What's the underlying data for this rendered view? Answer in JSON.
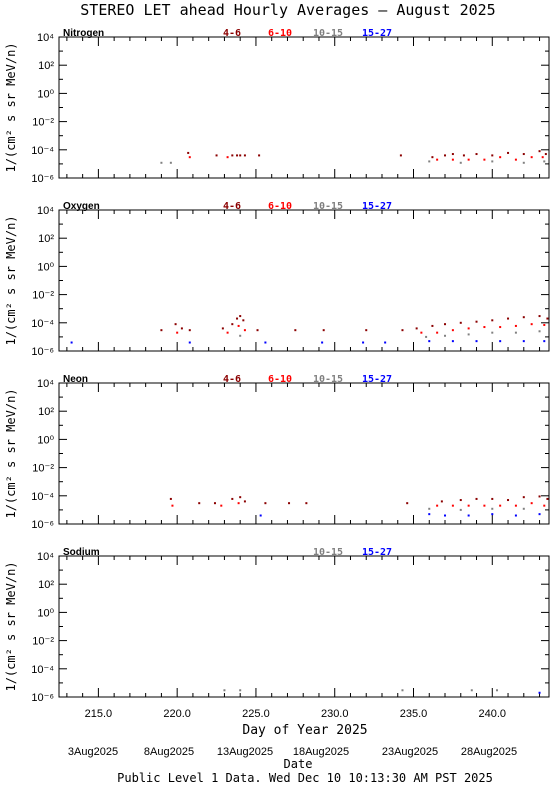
{
  "chart_data": {
    "type": "scatter",
    "title": "STEREO LET ahead Hourly Averages – August 2025",
    "xlabel": "Day of Year 2025",
    "ylabel": "1/(cm² s sr MeV/n)",
    "y_scale": "log",
    "ylim": [
      1e-06,
      10000.0
    ],
    "xlim": [
      212.5,
      243.6
    ],
    "x_ticks": [
      215.0,
      220.0,
      225.0,
      230.0,
      235.0,
      240.0
    ],
    "x_tick_labels": [
      "215.0",
      "220.0",
      "225.0",
      "230.0",
      "235.0",
      "240.0"
    ],
    "y_tick_labels": [
      "10⁴",
      "10²",
      "10⁰",
      "10⁻²",
      "10⁻⁴",
      "10⁻⁶"
    ],
    "date_labels": [
      "3Aug2025",
      "8Aug2025",
      "13Aug2025",
      "18Aug2025",
      "23Aug2025",
      "28Aug2025"
    ],
    "date_axis_label": "Date",
    "footer": "Public Level 1 Data. Wed Dec 10 10:13:30 AM PST 2025",
    "energy_legend": [
      {
        "name": "4-6",
        "color": "#8b0000"
      },
      {
        "name": "6-10",
        "color": "#ff0000"
      },
      {
        "name": "10-15",
        "color": "#808080"
      },
      {
        "name": "15-27",
        "color": "#0000ff"
      }
    ],
    "panels": [
      {
        "name": "Nitrogen",
        "legend": [
          "4-6",
          "6-10",
          "10-15",
          "15-27"
        ],
        "series": [
          {
            "name": "4-6",
            "color": "#8b0000",
            "points": [
              [
                220.7,
                6e-05
              ],
              [
                222.5,
                4e-05
              ],
              [
                223.5,
                4e-05
              ],
              [
                223.8,
                4e-05
              ],
              [
                224.0,
                4e-05
              ],
              [
                224.3,
                4e-05
              ],
              [
                225.2,
                4e-05
              ],
              [
                234.2,
                4e-05
              ],
              [
                236.2,
                3e-05
              ],
              [
                237.0,
                4e-05
              ],
              [
                237.5,
                5e-05
              ],
              [
                238.2,
                4e-05
              ],
              [
                239.0,
                5e-05
              ],
              [
                240.0,
                4e-05
              ],
              [
                241.0,
                6e-05
              ],
              [
                242.0,
                5e-05
              ],
              [
                243.0,
                8e-05
              ],
              [
                243.4,
                5e-05
              ]
            ]
          },
          {
            "name": "6-10",
            "color": "#ff0000",
            "points": [
              [
                220.8,
                3e-05
              ],
              [
                223.2,
                3e-05
              ],
              [
                236.5,
                2e-05
              ],
              [
                237.5,
                2e-05
              ],
              [
                238.5,
                2e-05
              ],
              [
                239.5,
                2e-05
              ],
              [
                240.5,
                3e-05
              ],
              [
                241.5,
                2e-05
              ],
              [
                242.5,
                3e-05
              ],
              [
                243.2,
                3e-05
              ]
            ]
          },
          {
            "name": "10-15",
            "color": "#808080",
            "points": [
              [
                219.0,
                1.2e-05
              ],
              [
                219.6,
                1.2e-05
              ],
              [
                236.0,
                1.5e-05
              ],
              [
                238.0,
                1.2e-05
              ],
              [
                240.0,
                1.5e-05
              ],
              [
                242.0,
                1.2e-05
              ],
              [
                243.3,
                1.5e-05
              ]
            ]
          },
          {
            "name": "15-27",
            "color": "#0000ff",
            "points": []
          }
        ]
      },
      {
        "name": "Oxygen",
        "legend": [
          "4-6",
          "6-10",
          "10-15",
          "15-27"
        ],
        "series": [
          {
            "name": "4-6",
            "color": "#8b0000",
            "points": [
              [
                219.0,
                3e-05
              ],
              [
                219.9,
                8e-05
              ],
              [
                220.3,
                4e-05
              ],
              [
                220.8,
                3e-05
              ],
              [
                222.9,
                4e-05
              ],
              [
                223.5,
                8e-05
              ],
              [
                223.8,
                0.0002
              ],
              [
                224.0,
                0.0003
              ],
              [
                224.2,
                0.00015
              ],
              [
                225.1,
                3e-05
              ],
              [
                227.5,
                3e-05
              ],
              [
                229.3,
                3e-05
              ],
              [
                232.0,
                3e-05
              ],
              [
                234.3,
                3e-05
              ],
              [
                235.2,
                4e-05
              ],
              [
                236.2,
                6e-05
              ],
              [
                237.0,
                8e-05
              ],
              [
                238.0,
                0.0001
              ],
              [
                239.0,
                0.00012
              ],
              [
                240.0,
                0.00015
              ],
              [
                241.0,
                0.0002
              ],
              [
                242.0,
                0.00025
              ],
              [
                243.0,
                0.0003
              ],
              [
                243.5,
                0.0002
              ]
            ]
          },
          {
            "name": "6-10",
            "color": "#ff0000",
            "points": [
              [
                220.0,
                2e-05
              ],
              [
                223.2,
                2e-05
              ],
              [
                223.9,
                6e-05
              ],
              [
                224.3,
                3e-05
              ],
              [
                235.5,
                2e-05
              ],
              [
                236.5,
                2e-05
              ],
              [
                237.5,
                3e-05
              ],
              [
                238.5,
                4e-05
              ],
              [
                239.5,
                5e-05
              ],
              [
                240.5,
                5e-05
              ],
              [
                241.5,
                6e-05
              ],
              [
                242.5,
                8e-05
              ],
              [
                243.3,
                7e-05
              ]
            ]
          },
          {
            "name": "10-15",
            "color": "#808080",
            "points": [
              [
                224.0,
                1.2e-05
              ],
              [
                235.8,
                1e-05
              ],
              [
                237.0,
                1.2e-05
              ],
              [
                238.5,
                1.5e-05
              ],
              [
                240.0,
                2e-05
              ],
              [
                241.5,
                2e-05
              ],
              [
                243.0,
                2.5e-05
              ]
            ]
          },
          {
            "name": "15-27",
            "color": "#0000ff",
            "points": [
              [
                213.3,
                4e-06
              ],
              [
                220.8,
                4e-06
              ],
              [
                225.6,
                4e-06
              ],
              [
                229.2,
                4e-06
              ],
              [
                231.8,
                4e-06
              ],
              [
                233.2,
                4e-06
              ],
              [
                236.0,
                5e-06
              ],
              [
                237.5,
                5e-06
              ],
              [
                239.0,
                5e-06
              ],
              [
                240.5,
                5e-06
              ],
              [
                242.0,
                5e-06
              ],
              [
                243.3,
                5e-06
              ]
            ]
          }
        ]
      },
      {
        "name": "Neon",
        "legend": [
          "4-6",
          "6-10",
          "10-15",
          "15-27"
        ],
        "series": [
          {
            "name": "4-6",
            "color": "#8b0000",
            "points": [
              [
                219.6,
                6e-05
              ],
              [
                221.4,
                3e-05
              ],
              [
                222.4,
                3e-05
              ],
              [
                223.5,
                6e-05
              ],
              [
                224.0,
                8e-05
              ],
              [
                224.3,
                4e-05
              ],
              [
                225.6,
                3e-05
              ],
              [
                227.1,
                3e-05
              ],
              [
                228.2,
                3e-05
              ],
              [
                234.6,
                3e-05
              ],
              [
                236.8,
                4e-05
              ],
              [
                238.0,
                5e-05
              ],
              [
                239.0,
                6e-05
              ],
              [
                240.0,
                6e-05
              ],
              [
                241.0,
                5e-05
              ],
              [
                242.0,
                8e-05
              ],
              [
                243.0,
                9e-05
              ],
              [
                243.5,
                6e-05
              ]
            ]
          },
          {
            "name": "6-10",
            "color": "#ff0000",
            "points": [
              [
                219.7,
                2e-05
              ],
              [
                222.8,
                2e-05
              ],
              [
                223.9,
                3e-05
              ],
              [
                236.5,
                2e-05
              ],
              [
                237.5,
                2e-05
              ],
              [
                238.5,
                2e-05
              ],
              [
                239.5,
                2e-05
              ],
              [
                240.5,
                2e-05
              ],
              [
                241.5,
                2e-05
              ],
              [
                242.5,
                3e-05
              ],
              [
                243.3,
                2e-05
              ]
            ]
          },
          {
            "name": "10-15",
            "color": "#808080",
            "points": [
              [
                236.0,
                1.2e-05
              ],
              [
                238.0,
                1e-05
              ],
              [
                240.0,
                1.2e-05
              ],
              [
                242.0,
                1.2e-05
              ]
            ]
          },
          {
            "name": "15-27",
            "color": "#0000ff",
            "points": [
              [
                225.3,
                4e-06
              ],
              [
                236.0,
                5e-06
              ],
              [
                237.0,
                4e-06
              ],
              [
                238.5,
                4e-06
              ],
              [
                240.0,
                5e-06
              ],
              [
                241.5,
                4e-06
              ],
              [
                243.0,
                5e-06
              ]
            ]
          }
        ]
      },
      {
        "name": "Sodium",
        "legend": [
          "10-15",
          "15-27"
        ],
        "series": [
          {
            "name": "10-15",
            "color": "#808080",
            "points": [
              [
                223.0,
                3e-06
              ],
              [
                224.0,
                3e-06
              ],
              [
                234.3,
                3e-06
              ],
              [
                238.7,
                3e-06
              ],
              [
                240.3,
                3e-06
              ]
            ]
          },
          {
            "name": "15-27",
            "color": "#0000ff",
            "points": [
              [
                243.0,
                2e-06
              ]
            ]
          }
        ]
      }
    ]
  }
}
